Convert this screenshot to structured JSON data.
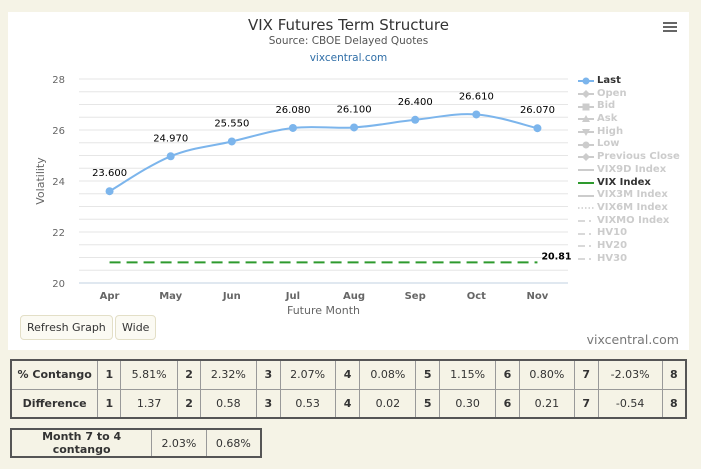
{
  "chart": {
    "title": "VIX Futures Term Structure",
    "subtitle": "Source: CBOE Delayed Quotes",
    "link": "vixcentral.com",
    "menu_icon": "hamburger-menu-icon",
    "watermark": "vixcentral.com"
  },
  "chart_data": {
    "type": "line",
    "title": "VIX Futures Term Structure",
    "subtitle": "Source: CBOE Delayed Quotes",
    "xlabel": "Future Month",
    "ylabel": "Volatility",
    "categories": [
      "Apr",
      "May",
      "Jun",
      "Jul",
      "Aug",
      "Sep",
      "Oct",
      "Nov"
    ],
    "ylim": [
      20,
      28
    ],
    "yticks": [
      20,
      22,
      24,
      26,
      28
    ],
    "grid": true,
    "legend_position": "right",
    "series": [
      {
        "name": "Last",
        "values": [
          23.6,
          24.97,
          25.55,
          26.08,
          26.1,
          26.4,
          26.61,
          26.07
        ],
        "labels": [
          "23.600",
          "24.970",
          "25.550",
          "26.080",
          "26.100",
          "26.400",
          "26.610",
          "26.070"
        ],
        "color": "#7cb5ec",
        "style": "solid-markers"
      },
      {
        "name": "VIX Index",
        "values": [
          20.81,
          20.81,
          20.81,
          20.81,
          20.81,
          20.81,
          20.81,
          20.81
        ],
        "end_label": "20.81",
        "color": "#2e9a2e",
        "style": "dashed"
      }
    ]
  },
  "axis": {
    "y_ticks": [
      "28",
      "26",
      "24",
      "22",
      "20"
    ],
    "y_title": "Volatility",
    "x_ticks": [
      "Apr",
      "May",
      "Jun",
      "Jul",
      "Aug",
      "Sep",
      "Oct",
      "Nov"
    ],
    "x_title": "Future Month"
  },
  "point_labels": [
    "23.600",
    "24.970",
    "25.550",
    "26.080",
    "26.100",
    "26.400",
    "26.610",
    "26.070"
  ],
  "vix_label": "20.81",
  "legend": [
    {
      "label": "Last",
      "active": true,
      "symbol": "circle-line"
    },
    {
      "label": "Open",
      "active": false,
      "symbol": "diamond-line"
    },
    {
      "label": "Bid",
      "active": false,
      "symbol": "square-line"
    },
    {
      "label": "Ask",
      "active": false,
      "symbol": "triangle-line"
    },
    {
      "label": "High",
      "active": false,
      "symbol": "triangle-down-line"
    },
    {
      "label": "Low",
      "active": false,
      "symbol": "circle-line"
    },
    {
      "label": "Previous Close",
      "active": false,
      "symbol": "diamond-line"
    },
    {
      "label": "VIX9D Index",
      "active": false,
      "symbol": "solid-line"
    },
    {
      "label": "VIX Index",
      "active": true,
      "symbol": "solid-line-green"
    },
    {
      "label": "VIX3M Index",
      "active": false,
      "symbol": "solid-line"
    },
    {
      "label": "VIX6M Index",
      "active": false,
      "symbol": "dotted-line"
    },
    {
      "label": "VIXMO Index",
      "active": false,
      "symbol": "dash-dot-line"
    },
    {
      "label": "HV10",
      "active": false,
      "symbol": "dash-dot-line"
    },
    {
      "label": "HV20",
      "active": false,
      "symbol": "dash-dot-line"
    },
    {
      "label": "HV30",
      "active": false,
      "symbol": "dash-dot-line"
    }
  ],
  "buttons": {
    "refresh": "Refresh Graph",
    "wide": "Wide"
  },
  "contango_table": {
    "rows": [
      {
        "header": "% Contango",
        "cells": [
          [
            "1",
            "5.81%"
          ],
          [
            "2",
            "2.32%"
          ],
          [
            "3",
            "2.07%"
          ],
          [
            "4",
            "0.08%"
          ],
          [
            "5",
            "1.15%"
          ],
          [
            "6",
            "0.80%"
          ],
          [
            "7",
            "-2.03%"
          ],
          [
            "8",
            ""
          ]
        ]
      },
      {
        "header": "Difference",
        "cells": [
          [
            "1",
            "1.37"
          ],
          [
            "2",
            "0.58"
          ],
          [
            "3",
            "0.53"
          ],
          [
            "4",
            "0.02"
          ],
          [
            "5",
            "0.30"
          ],
          [
            "6",
            "0.21"
          ],
          [
            "7",
            "-0.54"
          ],
          [
            "8",
            ""
          ]
        ]
      }
    ]
  },
  "month_table": {
    "label": "Month 7 to 4 contango",
    "value1": "2.03%",
    "value2": "0.68%"
  }
}
